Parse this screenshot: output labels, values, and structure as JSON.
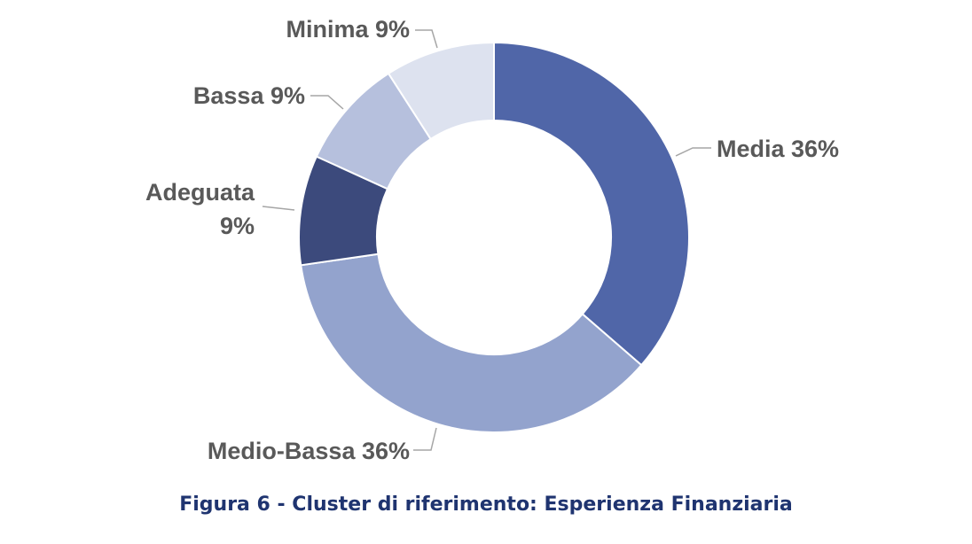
{
  "caption": "Figura 6 - Cluster di riferimento: Esperienza Finanziaria",
  "chart_data": {
    "type": "pie",
    "donut": true,
    "title": "",
    "slices": [
      {
        "name": "Media",
        "value": 36,
        "label": "Media 36%",
        "color": "#5066a8"
      },
      {
        "name": "Medio-Bassa",
        "value": 36,
        "label": "Medio-Bassa 36%",
        "color": "#93a3cd"
      },
      {
        "name": "Adeguata",
        "value": 9,
        "label_lines": [
          "Adeguata",
          "9%"
        ],
        "color": "#3c4a7c"
      },
      {
        "name": "Bassa",
        "value": 9,
        "label": "Bassa 9%",
        "color": "#b6c0dd"
      },
      {
        "name": "Minima",
        "value": 9,
        "label": "Minima 9%",
        "color": "#dde2ef"
      }
    ]
  }
}
